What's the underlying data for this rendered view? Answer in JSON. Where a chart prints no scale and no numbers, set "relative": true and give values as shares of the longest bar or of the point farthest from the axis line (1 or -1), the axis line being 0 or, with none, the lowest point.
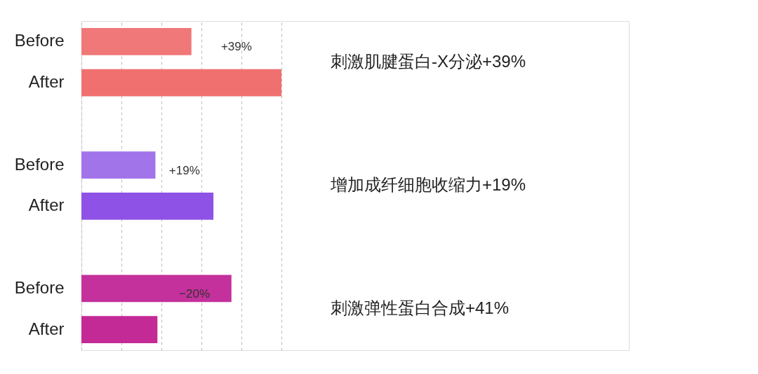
{
  "chart_data": {
    "type": "bar",
    "orientation": "horizontal",
    "relative": true,
    "grid": "x",
    "categories": [
      "Before",
      "After",
      "Before",
      "After",
      "Before",
      "After"
    ],
    "values": [
      0.55,
      1,
      0.37,
      0.66,
      0.75,
      0.38
    ],
    "colors": [
      "#f07878",
      "#f07070",
      "#a274ea",
      "#8e52e6",
      "#c4309c",
      "#c42a96"
    ],
    "annotations": [
      "+39%",
      "刺激肌腱蛋白-X分泌+39%",
      "+19%",
      "增加成纤细胞收缩力+19%",
      "−20%",
      "刺激弹性蛋白合成+41%"
    ]
  }
}
